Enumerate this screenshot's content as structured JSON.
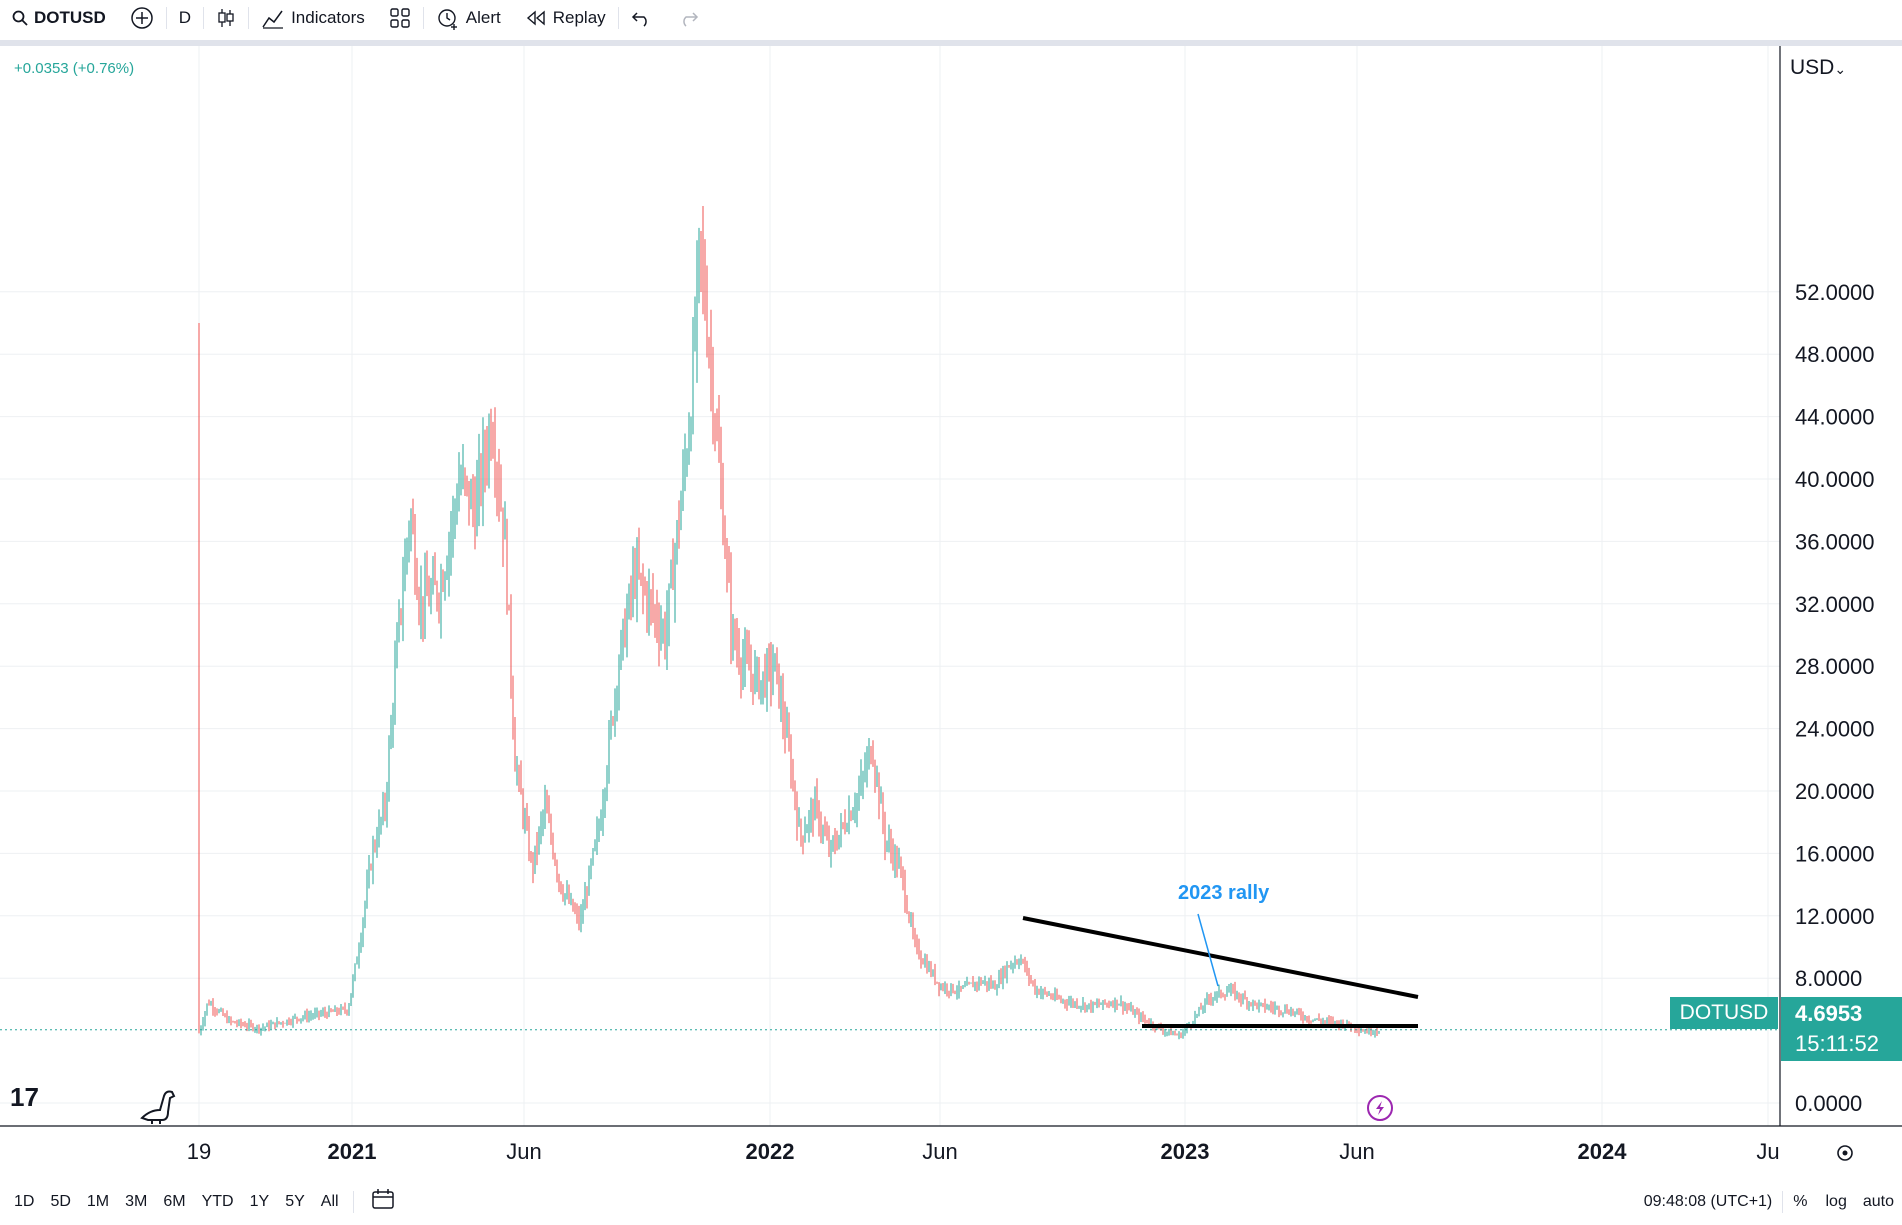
{
  "toolbar": {
    "symbol": "DOTUSD",
    "interval": "D",
    "indicators_label": "Indicators",
    "alert_label": "Alert",
    "replay_label": "Replay"
  },
  "header": {
    "change": "+0.0353 (+0.76%)",
    "currency": "USD"
  },
  "price_axis": {
    "ticks": [
      "52.0000",
      "48.0000",
      "44.0000",
      "40.0000",
      "36.0000",
      "32.0000",
      "28.0000",
      "24.0000",
      "20.0000",
      "16.0000",
      "12.0000",
      "8.0000",
      "0.0000"
    ]
  },
  "time_axis": {
    "ticks": [
      {
        "label": "19",
        "bold": false
      },
      {
        "label": "2021",
        "bold": true
      },
      {
        "label": "Jun",
        "bold": false
      },
      {
        "label": "2022",
        "bold": true
      },
      {
        "label": "Jun",
        "bold": false
      },
      {
        "label": "2023",
        "bold": true
      },
      {
        "label": "Jun",
        "bold": false
      },
      {
        "label": "2024",
        "bold": true
      },
      {
        "label": "Ju",
        "bold": false
      }
    ]
  },
  "last_price": {
    "symbol_tag": "DOTUSD",
    "price": "4.6953",
    "countdown": "15:11:52"
  },
  "annotation": {
    "text": "2023 rally"
  },
  "bottom_bar": {
    "ranges": [
      "1D",
      "5D",
      "1M",
      "3M",
      "6M",
      "YTD",
      "1Y",
      "5Y",
      "All"
    ],
    "clock": "09:48:08 (UTC+1)",
    "percent": "%",
    "log": "log",
    "auto": "auto"
  },
  "colors": {
    "up": "#26a69a",
    "down": "#ef5350",
    "accent": "#2196f3",
    "badge": "#26a69a"
  }
}
